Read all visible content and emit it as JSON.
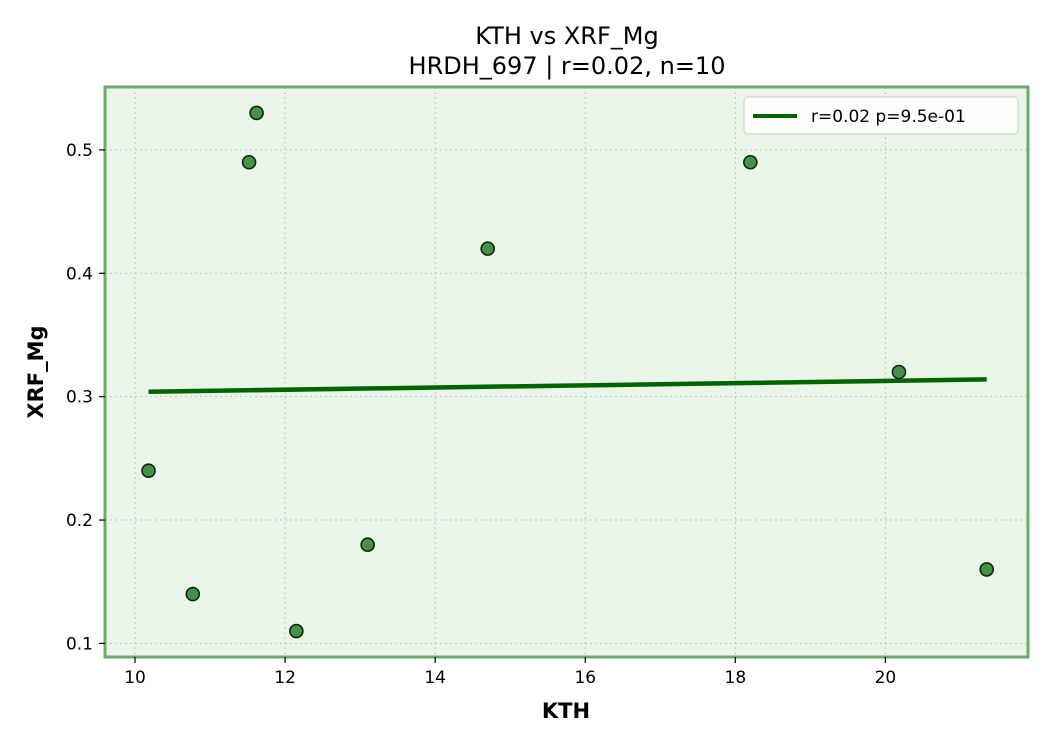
{
  "colors": {
    "plot_background": "#e8f5e8",
    "frame": "#6aaa6a",
    "points": "#1a7a1a",
    "fit_line": "#006400"
  },
  "chart_data": {
    "type": "scatter",
    "title": "KTH vs XRF_Mg",
    "subtitle": "HRDH_697 | r=0.02, n=10",
    "xlabel": "KTH",
    "ylabel": "XRF_Mg",
    "xlim": [
      9.6,
      21.9
    ],
    "ylim": [
      0.089,
      0.551
    ],
    "xticks": [
      10,
      12,
      14,
      16,
      18,
      20
    ],
    "yticks": [
      0.1,
      0.2,
      0.3,
      0.4,
      0.5
    ],
    "xtick_labels": [
      "10",
      "12",
      "14",
      "16",
      "18",
      "20"
    ],
    "ytick_labels": [
      "0.1",
      "0.2",
      "0.3",
      "0.4",
      "0.5"
    ],
    "grid": true,
    "legend_position": "top-right",
    "series": [
      {
        "type": "scatter",
        "x": [
          10.18,
          10.77,
          11.52,
          11.62,
          12.15,
          13.1,
          14.7,
          18.2,
          20.18,
          21.35
        ],
        "y": [
          0.24,
          0.14,
          0.49,
          0.53,
          0.11,
          0.18,
          0.42,
          0.49,
          0.32,
          0.16
        ]
      },
      {
        "type": "line",
        "name": "r=0.02  p=9.5e-01",
        "x": [
          10.18,
          21.35
        ],
        "y": [
          0.304,
          0.314
        ]
      }
    ]
  }
}
